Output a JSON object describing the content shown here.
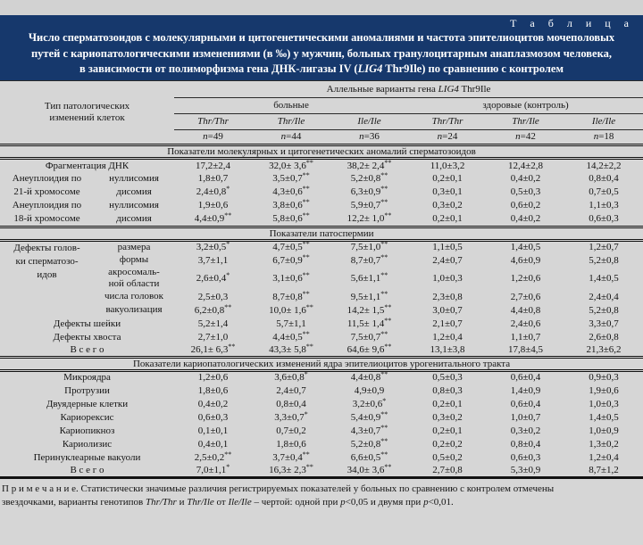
{
  "page": {
    "table_label": "Т а б л и ц а",
    "title_lines": [
      "Число сперматозоидов с молекулярными и цитогенетическими аномалиями и частота эпителиоцитов мочеполовых",
      "путей с кариопатологическими изменениями (в ‰) у мужчин, больных гранулоцитарным анаплазмозом человека,",
      "в зависимости от полиморфизма гена ДНК-лигазы IV (LIG4 Thr9Ile) по сравнению с контролем"
    ],
    "footnote": "П р и м е ч а н и е. Статистически значимые различия регистрируемых показателей у больных по сравнению с контролем отмечены\nзвездочками, варианты генотипов Thr/Thr и Thr/Ile от Ile/Ile – чертой:  одной при p<0,05 и двумя при p<0,01."
  },
  "header": {
    "row_type_label": "Тип патологических\nизменений клеток",
    "allele_header": "Аллельные варианты гена LIG4 Thr9Ile",
    "patient_group": "больные",
    "control_group": "здоровые (контроль)",
    "genotypes": [
      "Thr/Thr",
      "Thr/Ile",
      "Ile/Ile",
      "Thr/Thr",
      "Thr/Ile",
      "Ile/Ile"
    ],
    "counts": [
      "n=49",
      "n=44",
      "n=36",
      "n=24",
      "n=42",
      "n=18"
    ]
  },
  "sections": [
    {
      "title": "Показатели молекулярных и цитогенетических аномалий сперматозоидов",
      "rows": [
        {
          "label": "Фрагментация ДНК",
          "values": [
            "17,2±2,4",
            "32,0± 3,6**",
            "38,2± 2,4**",
            "11,0±3,2",
            "12,4±2,8",
            "14,2±2,2"
          ]
        },
        {
          "group": "Анеуплоидия по\n21-й хромосоме",
          "group_rows": 2,
          "sub": "нуллисомия",
          "values": [
            "1,8±0,7",
            "3,5±0,7**",
            "5,2±0,8**",
            "0,2±0,1",
            "0,4±0,2",
            "0,8±0,4"
          ]
        },
        {
          "sub": "дисомия",
          "values": [
            "2,4±0,8*",
            "4,3±0,6**",
            "6,3±0,9**",
            "0,3±0,1",
            "0,5±0,3",
            "0,7±0,5"
          ]
        },
        {
          "group": "Анеуплоидия по\n18-й хромосоме",
          "group_rows": 2,
          "sub": "нуллисомия",
          "values": [
            "1,9±0,6",
            "3,8±0,6**",
            "5,9±0,7**",
            "0,3±0,2",
            "0,6±0,2",
            "1,1±0,3"
          ]
        },
        {
          "sub": "дисомия",
          "values": [
            "4,4±0,9**",
            "5,8±0,6**",
            "12,2± 1,0**",
            "0,2±0,1",
            "0,4±0,2",
            "0,6±0,3"
          ]
        }
      ]
    },
    {
      "title": "Показатели патоспермии",
      "rows": [
        {
          "group": "Дефекты голов-\nки сперматозо-\nидов",
          "group_rows": 5,
          "sub": "размера",
          "values": [
            "3,2±0,5*",
            "4,7±0,5**",
            "7,5±1,0**",
            "1,1±0,5",
            "1,4±0,5",
            "1,2±0,7"
          ]
        },
        {
          "sub": "формы",
          "values": [
            "3,7±1,1",
            "6,7±0,9**",
            "8,7±0,7**",
            "2,4±0,7",
            "4,6±0,9",
            "5,2±0,8"
          ]
        },
        {
          "sub": "акросомаль-\nной области",
          "tall": true,
          "values": [
            "2,6±0,4*",
            "3,1±0,6**",
            "5,6±1,1**",
            "1,0±0,3",
            "1,2±0,6",
            "1,4±0,5"
          ]
        },
        {
          "sub": "числа головок",
          "values": [
            "2,5±0,3",
            "8,7±0,8**",
            "9,5±1,1**",
            "2,3±0,8",
            "2,7±0,6",
            "2,4±0,4"
          ]
        },
        {
          "sub": "вакуолизация",
          "values": [
            "6,2±0,8**",
            "10,0± 1,6**",
            "14,2± 1,5**",
            "3,0±0,7",
            "4,4±0,8",
            "5,2±0,8"
          ]
        },
        {
          "label": "Дефекты шейки",
          "values": [
            "5,2±1,4",
            "5,7±1,1",
            "11,5± 1,4**",
            "2,1±0,7",
            "2,4±0,6",
            "3,3±0,7"
          ]
        },
        {
          "label": "Дефекты хвоста",
          "values": [
            "2,7±1,0",
            "4,4±0,5**",
            "7,5±0,7**",
            "1,2±0,4",
            "1,1±0,7",
            "2,6±0,8"
          ]
        },
        {
          "label": "В с е г о",
          "values": [
            "26,1± 6,3**",
            "43,3± 5,8**",
            "64,6± 9,6**",
            "13,1±3,8",
            "17,8±4,5",
            "21,3±6,2"
          ]
        }
      ]
    },
    {
      "title": "Показатели кариопатологических изменений ядра эпителиоцитов урогенитального тракта",
      "rows": [
        {
          "label": "Микроядра",
          "values": [
            "1,2±0,6",
            "3,6±0,8*",
            "4,4±0,8**",
            "0,5±0,3",
            "0,6±0,4",
            "0,9±0,3"
          ]
        },
        {
          "label": "Протрузии",
          "values": [
            "1,8±0,6",
            "2,4±0,7",
            "4,9±0,9",
            "0,8±0,3",
            "1,4±0,9",
            "1,9±0,6"
          ]
        },
        {
          "label": "Двуядерные клетки",
          "values": [
            "0,4±0,2",
            "0,8±0,4",
            "3,2±0,6*",
            "0,2±0,1",
            "0,6±0,4",
            "1,0±0,3"
          ]
        },
        {
          "label": "Кариорексис",
          "values": [
            "0,6±0,3",
            "3,3±0,7*",
            "5,4±0,9**",
            "0,3±0,2",
            "1,0±0,7",
            "1,4±0,5"
          ]
        },
        {
          "label": "Кариопикноз",
          "values": [
            "0,1±0,1",
            "0,7±0,2",
            "4,3±0,7**",
            "0,2±0,1",
            "0,3±0,2",
            "1,0±0,9"
          ]
        },
        {
          "label": "Кариолизис",
          "values": [
            "0,4±0,1",
            "1,8±0,6",
            "5,2±0,8**",
            "0,2±0,2",
            "0,8±0,4",
            "1,3±0,2"
          ]
        },
        {
          "label": "Перинуклеарные вакуоли",
          "values": [
            "2,5±0,2**",
            "3,7±0,4**",
            "6,6±0,5**",
            "0,5±0,2",
            "0,6±0,3",
            "1,2±0,4"
          ]
        },
        {
          "label": "В с е г о",
          "values": [
            "7,0±1,1*",
            "16,3± 2,3**",
            "34,0± 3,6**",
            "2,7±0,8",
            "5,3±0,9",
            "8,7±1,2"
          ]
        }
      ]
    }
  ]
}
